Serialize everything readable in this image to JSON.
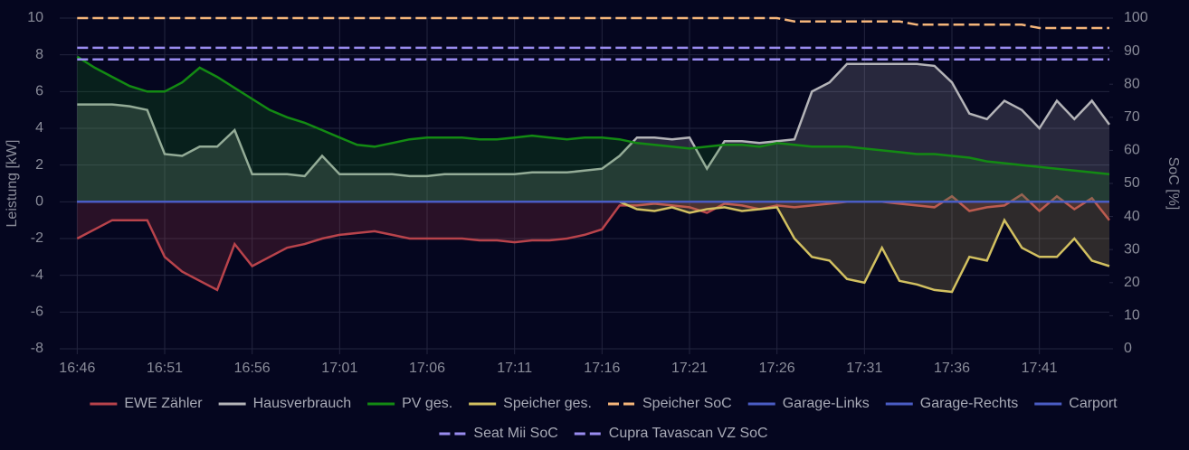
{
  "chart_data": {
    "type": "line",
    "x": [
      "16:46",
      "16:47",
      "16:48",
      "16:49",
      "16:50",
      "16:51",
      "16:52",
      "16:53",
      "16:54",
      "16:55",
      "16:56",
      "16:57",
      "16:58",
      "16:59",
      "17:00",
      "17:01",
      "17:02",
      "17:03",
      "17:04",
      "17:05",
      "17:06",
      "17:07",
      "17:08",
      "17:09",
      "17:10",
      "17:11",
      "17:12",
      "17:13",
      "17:14",
      "17:15",
      "17:16",
      "17:17",
      "17:18",
      "17:19",
      "17:20",
      "17:21",
      "17:22",
      "17:23",
      "17:24",
      "17:25",
      "17:26",
      "17:27",
      "17:28",
      "17:29",
      "17:30",
      "17:31",
      "17:32",
      "17:33",
      "17:34",
      "17:35",
      "17:36",
      "17:37",
      "17:38",
      "17:39",
      "17:40",
      "17:41",
      "17:42",
      "17:43",
      "17:44",
      "17:45"
    ],
    "xlim": [
      "16:45",
      "17:45"
    ],
    "xticks": [
      "16:46",
      "16:51",
      "16:56",
      "17:01",
      "17:06",
      "17:11",
      "17:16",
      "17:21",
      "17:26",
      "17:31",
      "17:36",
      "17:41"
    ],
    "ylabel": "Leistung [kW]",
    "y2label": "SoC [%]",
    "ylim": [
      -8,
      10
    ],
    "yticks": [
      -8,
      -6,
      -4,
      -2,
      0,
      2,
      4,
      6,
      8,
      10
    ],
    "y2lim": [
      0,
      100
    ],
    "y2ticks": [
      0,
      10,
      20,
      30,
      40,
      50,
      60,
      70,
      80,
      90,
      100
    ],
    "grid": true,
    "series": [
      {
        "name": "EWE Zähler",
        "color": "#b8434b",
        "fill": true,
        "values": [
          -2,
          -1.5,
          -1,
          -1,
          -1,
          -3,
          -3.8,
          -4.3,
          -4.8,
          -2.3,
          -3.5,
          -3.0,
          -2.5,
          -2.3,
          -2.0,
          -1.8,
          -1.7,
          -1.6,
          -1.8,
          -2.0,
          -2.0,
          -2.0,
          -2.0,
          -2.1,
          -2.1,
          -2.2,
          -2.1,
          -2.1,
          -2.0,
          -1.8,
          -1.5,
          -0.2,
          -0.2,
          -0.1,
          -0.2,
          -0.3,
          -0.6,
          -0.1,
          -0.2,
          -0.4,
          -0.2,
          -0.3,
          -0.2,
          -0.1,
          0,
          0,
          0,
          -0.1,
          -0.2,
          -0.3,
          0.3,
          -0.5,
          -0.3,
          -0.2,
          0.4,
          -0.5,
          0.3,
          -0.4,
          0.2,
          -1.0
        ]
      },
      {
        "name": "Hausverbrauch",
        "color": "#b4b4b8",
        "fill": true,
        "values": [
          5.3,
          5.3,
          5.3,
          5.2,
          5.0,
          2.6,
          2.5,
          3.0,
          3.0,
          3.9,
          1.5,
          1.5,
          1.5,
          1.4,
          2.5,
          1.5,
          1.5,
          1.5,
          1.5,
          1.4,
          1.4,
          1.5,
          1.5,
          1.5,
          1.5,
          1.5,
          1.6,
          1.6,
          1.6,
          1.7,
          1.8,
          2.5,
          3.5,
          3.5,
          3.4,
          3.5,
          1.8,
          3.3,
          3.3,
          3.2,
          3.3,
          3.4,
          6.0,
          6.5,
          7.5,
          7.5,
          7.5,
          7.5,
          7.5,
          7.4,
          6.5,
          4.8,
          4.5,
          5.5,
          5.0,
          4.0,
          5.5,
          4.5,
          5.5,
          4.2
        ]
      },
      {
        "name": "PV ges.",
        "color": "#138a13",
        "fill": true,
        "values": [
          7.9,
          7.3,
          6.8,
          6.3,
          6.0,
          6.0,
          6.5,
          7.3,
          6.8,
          6.2,
          5.6,
          5.0,
          4.6,
          4.3,
          3.9,
          3.5,
          3.1,
          3.0,
          3.2,
          3.4,
          3.5,
          3.5,
          3.5,
          3.4,
          3.4,
          3.5,
          3.6,
          3.5,
          3.4,
          3.5,
          3.5,
          3.4,
          3.2,
          3.1,
          3.0,
          2.9,
          3.0,
          3.1,
          3.1,
          3.0,
          3.2,
          3.1,
          3.0,
          3.0,
          3.0,
          2.9,
          2.8,
          2.7,
          2.6,
          2.6,
          2.5,
          2.4,
          2.2,
          2.1,
          2.0,
          1.9,
          1.8,
          1.7,
          1.6,
          1.5
        ]
      },
      {
        "name": "Speicher ges.",
        "color": "#d2c060",
        "fill": true,
        "values": [
          0,
          0,
          0,
          0,
          0,
          0,
          0,
          0,
          0,
          0,
          0,
          0,
          0,
          0,
          0,
          0,
          0,
          0,
          0,
          0,
          0,
          0,
          0,
          0,
          0,
          0,
          0,
          0,
          0,
          0,
          0,
          0,
          -0.4,
          -0.5,
          -0.3,
          -0.6,
          -0.4,
          -0.3,
          -0.5,
          -0.4,
          -0.3,
          -2.0,
          -3,
          -3.2,
          -4.2,
          -4.4,
          -2.5,
          -4.3,
          -4.5,
          -4.8,
          -4.9,
          -3.0,
          -3.2,
          -1.0,
          -2.5,
          -3.0,
          -3.0,
          -2.0,
          -3.2,
          -3.5
        ]
      },
      {
        "name": "Speicher SoC",
        "color": "#f5b57a",
        "dashed": true,
        "axis": "y2",
        "values": [
          100,
          100,
          100,
          100,
          100,
          100,
          100,
          100,
          100,
          100,
          100,
          100,
          100,
          100,
          100,
          100,
          100,
          100,
          100,
          100,
          100,
          100,
          100,
          100,
          100,
          100,
          100,
          100,
          100,
          100,
          100,
          100,
          100,
          100,
          100,
          100,
          100,
          100,
          100,
          100,
          100,
          99,
          99,
          99,
          99,
          99,
          99,
          99,
          98,
          98,
          98,
          98,
          98,
          98,
          98,
          97,
          97,
          97,
          97,
          97
        ]
      },
      {
        "name": "Garage-Links",
        "color": "#4a5cc4",
        "values": [
          0,
          0,
          0,
          0,
          0,
          0,
          0,
          0,
          0,
          0,
          0,
          0,
          0,
          0,
          0,
          0,
          0,
          0,
          0,
          0,
          0,
          0,
          0,
          0,
          0,
          0,
          0,
          0,
          0,
          0,
          0,
          0,
          0,
          0,
          0,
          0,
          0,
          0,
          0,
          0,
          0,
          0,
          0,
          0,
          0,
          0,
          0,
          0,
          0,
          0,
          0,
          0,
          0,
          0,
          0,
          0,
          0,
          0,
          0,
          0
        ]
      },
      {
        "name": "Garage-Rechts",
        "color": "#4a5cc4",
        "values": [
          0,
          0,
          0,
          0,
          0,
          0,
          0,
          0,
          0,
          0,
          0,
          0,
          0,
          0,
          0,
          0,
          0,
          0,
          0,
          0,
          0,
          0,
          0,
          0,
          0,
          0,
          0,
          0,
          0,
          0,
          0,
          0,
          0,
          0,
          0,
          0,
          0,
          0,
          0,
          0,
          0,
          0,
          0,
          0,
          0,
          0,
          0,
          0,
          0,
          0,
          0,
          0,
          0,
          0,
          0,
          0,
          0,
          0,
          0,
          0
        ]
      },
      {
        "name": "Carport",
        "color": "#4a5cc4",
        "values": [
          0,
          0,
          0,
          0,
          0,
          0,
          0,
          0,
          0,
          0,
          0,
          0,
          0,
          0,
          0,
          0,
          0,
          0,
          0,
          0,
          0,
          0,
          0,
          0,
          0,
          0,
          0,
          0,
          0,
          0,
          0,
          0,
          0,
          0,
          0,
          0,
          0,
          0,
          0,
          0,
          0,
          0,
          0,
          0,
          0,
          0,
          0,
          0,
          0,
          0,
          0,
          0,
          0,
          0,
          0,
          0,
          0,
          0,
          0,
          0
        ]
      },
      {
        "name": "Seat Mii SoC",
        "color": "#9a8cf0",
        "dashed": true,
        "axis": "y2",
        "values": [
          91,
          91,
          91,
          91,
          91,
          91,
          91,
          91,
          91,
          91,
          91,
          91,
          91,
          91,
          91,
          91,
          91,
          91,
          91,
          91,
          91,
          91,
          91,
          91,
          91,
          91,
          91,
          91,
          91,
          91,
          91,
          91,
          91,
          91,
          91,
          91,
          91,
          91,
          91,
          91,
          91,
          91,
          91,
          91,
          91,
          91,
          91,
          91,
          91,
          91,
          91,
          91,
          91,
          91,
          91,
          91,
          91,
          91,
          91,
          91
        ]
      },
      {
        "name": "Cupra Tavascan VZ SoC",
        "color": "#9a8cf0",
        "dashed": true,
        "axis": "y2",
        "values": [
          87.5,
          87.5,
          87.5,
          87.5,
          87.5,
          87.5,
          87.5,
          87.5,
          87.5,
          87.5,
          87.5,
          87.5,
          87.5,
          87.5,
          87.5,
          87.5,
          87.5,
          87.5,
          87.5,
          87.5,
          87.5,
          87.5,
          87.5,
          87.5,
          87.5,
          87.5,
          87.5,
          87.5,
          87.5,
          87.5,
          87.5,
          87.5,
          87.5,
          87.5,
          87.5,
          87.5,
          87.5,
          87.5,
          87.5,
          87.5,
          87.5,
          87.5,
          87.5,
          87.5,
          87.5,
          87.5,
          87.5,
          87.5,
          87.5,
          87.5,
          87.5,
          87.5,
          87.5,
          87.5,
          87.5,
          87.5,
          87.5,
          87.5,
          87.5,
          87.5
        ]
      }
    ]
  }
}
